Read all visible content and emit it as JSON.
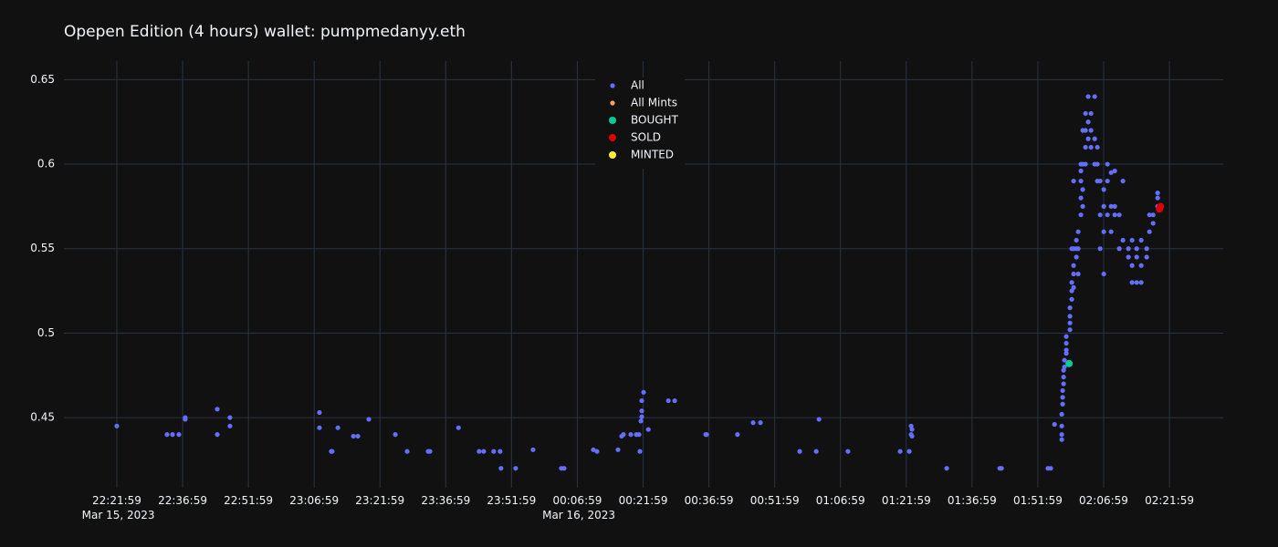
{
  "chart_data": {
    "type": "scatter",
    "title": "Opepen Edition (4 hours) wallet: pumpmedanyy.eth",
    "legend": "top-center",
    "grid": true,
    "xlim": [
      "2023-03-15 22:09:55",
      "2023-03-16 02:34:15"
    ],
    "ylim": [
      0.4085,
      0.661
    ],
    "yticks": [
      0.45,
      0.5,
      0.55,
      0.6,
      0.65
    ],
    "xticks": [
      {
        "value": "2023-03-15 22:21:59",
        "label": "22:21:59\nMar 15, 2023"
      },
      {
        "value": "2023-03-15 22:36:59",
        "label": "22:36:59"
      },
      {
        "value": "2023-03-15 22:51:59",
        "label": "22:51:59"
      },
      {
        "value": "2023-03-15 23:06:59",
        "label": "23:06:59"
      },
      {
        "value": "2023-03-15 23:21:59",
        "label": "23:21:59"
      },
      {
        "value": "2023-03-15 23:36:59",
        "label": "23:36:59"
      },
      {
        "value": "2023-03-15 23:51:59",
        "label": "23:51:59"
      },
      {
        "value": "2023-03-16 00:06:59",
        "label": "00:06:59\nMar 16, 2023"
      },
      {
        "value": "2023-03-16 00:21:59",
        "label": "00:21:59"
      },
      {
        "value": "2023-03-16 00:36:59",
        "label": "00:36:59"
      },
      {
        "value": "2023-03-16 00:51:59",
        "label": "00:51:59"
      },
      {
        "value": "2023-03-16 01:06:59",
        "label": "01:06:59"
      },
      {
        "value": "2023-03-16 01:21:59",
        "label": "01:21:59"
      },
      {
        "value": "2023-03-16 01:36:59",
        "label": "01:36:59"
      },
      {
        "value": "2023-03-16 01:51:59",
        "label": "01:51:59"
      },
      {
        "value": "2023-03-16 02:06:59",
        "label": "02:06:59"
      },
      {
        "value": "2023-03-16 02:21:59",
        "label": "02:21:59"
      }
    ],
    "series": [
      {
        "name": "All",
        "color": "#636efa",
        "x": [
          "2023-03-15 22:21:59",
          "2023-03-15 22:33:26",
          "2023-03-15 22:34:41",
          "2023-03-15 22:36:08",
          "2023-03-15 22:37:35",
          "2023-03-15 22:37:35",
          "2023-03-15 22:44:53",
          "2023-03-15 22:44:53",
          "2023-03-15 22:47:47",
          "2023-03-15 22:47:47",
          "2023-03-15 23:08:11",
          "2023-03-15 23:08:11",
          "2023-03-15 23:10:53",
          "2023-03-15 23:11:05",
          "2023-03-15 23:12:23",
          "2023-03-15 23:15:55",
          "2023-03-15 23:16:57",
          "2023-03-15 23:19:26",
          "2023-03-15 23:25:29",
          "2023-03-15 23:28:11",
          "2023-03-15 23:32:58",
          "2023-03-15 23:33:23",
          "2023-03-15 23:39:53",
          "2023-03-15 23:44:35",
          "2023-03-15 23:45:38",
          "2023-03-15 23:47:55",
          "2023-03-15 23:49:22",
          "2023-03-15 23:49:35",
          "2023-03-15 23:52:55",
          "2023-03-15 23:56:53",
          "2023-03-16 00:03:20",
          "2023-03-16 00:03:58",
          "2023-03-16 00:10:38",
          "2023-03-16 00:11:28",
          "2023-03-16 00:16:15",
          "2023-03-16 00:17:05",
          "2023-03-16 00:17:30",
          "2023-03-16 00:19:10",
          "2023-03-16 00:20:25",
          "2023-03-16 00:21:03",
          "2023-03-16 00:21:15",
          "2023-03-16 00:21:28",
          "2023-03-16 00:21:40",
          "2023-03-16 00:21:40",
          "2023-03-16 00:21:40",
          "2023-03-16 00:22:05",
          "2023-03-16 00:23:10",
          "2023-03-16 00:27:44",
          "2023-03-16 00:29:11",
          "2023-03-16 00:36:15",
          "2023-03-16 00:36:27",
          "2023-03-16 00:43:29",
          "2023-03-16 00:47:04",
          "2023-03-16 00:48:44",
          "2023-03-16 00:57:41",
          "2023-03-16 01:01:27",
          "2023-03-16 01:02:05",
          "2023-03-16 01:08:41",
          "2023-03-16 01:20:35",
          "2023-03-16 01:22:40",
          "2023-03-16 01:23:05",
          "2023-03-16 01:23:17",
          "2023-03-16 01:23:05",
          "2023-03-16 01:23:17",
          "2023-03-16 01:31:12",
          "2023-03-16 01:43:17",
          "2023-03-16 01:43:42",
          "2023-03-16 01:54:17",
          "2023-03-16 01:54:55",
          "2023-03-16 01:55:47",
          "2023-03-16 01:57:26",
          "2023-03-16 01:57:26",
          "2023-03-16 01:57:26",
          "2023-03-16 01:57:26",
          "2023-03-16 01:57:38",
          "2023-03-16 01:57:38",
          "2023-03-16 01:57:38",
          "2023-03-16 01:57:51",
          "2023-03-16 01:57:51",
          "2023-03-16 01:57:51",
          "2023-03-16 01:58:03",
          "2023-03-16 01:58:03",
          "2023-03-16 01:58:28",
          "2023-03-16 01:58:28",
          "2023-03-16 01:58:28",
          "2023-03-16 01:58:28",
          "2023-03-16 01:59:18",
          "2023-03-16 01:59:18",
          "2023-03-16 01:59:18",
          "2023-03-16 01:59:18",
          "2023-03-16 01:59:43",
          "2023-03-16 01:59:43",
          "2023-03-16 01:59:43",
          "2023-03-16 01:59:43",
          "2023-03-16 02:00:08",
          "2023-03-16 02:00:08",
          "2023-03-16 02:00:08",
          "2023-03-16 02:00:08",
          "2023-03-16 02:00:08",
          "2023-03-16 02:00:46",
          "2023-03-16 02:00:46",
          "2023-03-16 02:00:46",
          "2023-03-16 02:01:11",
          "2023-03-16 02:01:11",
          "2023-03-16 02:01:11",
          "2023-03-16 02:01:48",
          "2023-03-16 02:01:48",
          "2023-03-16 02:01:48",
          "2023-03-16 02:01:48",
          "2023-03-16 02:01:48",
          "2023-03-16 02:02:13",
          "2023-03-16 02:02:13",
          "2023-03-16 02:02:13",
          "2023-03-16 02:02:13",
          "2023-03-16 02:02:51",
          "2023-03-16 02:02:51",
          "2023-03-16 02:02:51",
          "2023-03-16 02:02:51",
          "2023-03-16 02:03:28",
          "2023-03-16 02:03:28",
          "2023-03-16 02:03:28",
          "2023-03-16 02:04:06",
          "2023-03-16 02:04:06",
          "2023-03-16 02:04:06",
          "2023-03-16 02:04:56",
          "2023-03-16 02:04:56",
          "2023-03-16 02:04:56",
          "2023-03-16 02:05:33",
          "2023-03-16 02:05:33",
          "2023-03-16 02:05:33",
          "2023-03-16 02:06:11",
          "2023-03-16 02:06:11",
          "2023-03-16 02:06:11",
          "2023-03-16 02:07:01",
          "2023-03-16 02:07:01",
          "2023-03-16 02:07:01",
          "2023-03-16 02:07:01",
          "2023-03-16 02:07:51",
          "2023-03-16 02:07:51",
          "2023-03-16 02:07:51",
          "2023-03-16 02:08:41",
          "2023-03-16 02:08:41",
          "2023-03-16 02:08:41",
          "2023-03-16 02:09:31",
          "2023-03-16 02:09:31",
          "2023-03-16 02:09:31",
          "2023-03-16 02:10:33",
          "2023-03-16 02:10:33",
          "2023-03-16 02:11:23",
          "2023-03-16 02:11:23",
          "2023-03-16 02:12:38",
          "2023-03-16 02:12:38",
          "2023-03-16 02:13:28",
          "2023-03-16 02:13:28",
          "2023-03-16 02:13:28",
          "2023-03-16 02:14:31",
          "2023-03-16 02:14:31",
          "2023-03-16 02:14:31",
          "2023-03-16 02:15:33",
          "2023-03-16 02:15:33",
          "2023-03-16 02:15:33",
          "2023-03-16 02:16:48",
          "2023-03-16 02:16:48",
          "2023-03-16 02:17:26",
          "2023-03-16 02:17:26",
          "2023-03-16 02:18:16",
          "2023-03-16 02:18:16",
          "2023-03-16 02:19:18",
          "2023-03-16 02:19:18",
          "2023-03-16 02:19:18"
        ],
        "values": [
          0.445,
          0.44,
          0.44,
          0.44,
          0.45,
          0.449,
          0.455,
          0.44,
          0.45,
          0.445,
          0.453,
          0.444,
          0.43,
          0.43,
          0.444,
          0.439,
          0.439,
          0.449,
          0.44,
          0.43,
          0.43,
          0.43,
          0.444,
          0.43,
          0.43,
          0.43,
          0.43,
          0.42,
          0.42,
          0.431,
          0.42,
          0.42,
          0.431,
          0.43,
          0.431,
          0.439,
          0.44,
          0.44,
          0.44,
          0.44,
          0.43,
          0.448,
          0.4505,
          0.454,
          0.46,
          0.465,
          0.443,
          0.46,
          0.46,
          0.44,
          0.44,
          0.44,
          0.447,
          0.447,
          0.43,
          0.43,
          0.449,
          0.43,
          0.43,
          0.43,
          0.445,
          0.443,
          0.44,
          0.439,
          0.42,
          0.42,
          0.42,
          0.42,
          0.42,
          0.446,
          0.437,
          0.44,
          0.445,
          0.452,
          0.458,
          0.462,
          0.466,
          0.47,
          0.474,
          0.478,
          0.48,
          0.484,
          0.488,
          0.49,
          0.494,
          0.498,
          0.502,
          0.506,
          0.51,
          0.515,
          0.52,
          0.525,
          0.53,
          0.55,
          0.527,
          0.535,
          0.54,
          0.55,
          0.59,
          0.545,
          0.55,
          0.555,
          0.55,
          0.56,
          0.535,
          0.57,
          0.58,
          0.59,
          0.596,
          0.6,
          0.575,
          0.585,
          0.6,
          0.62,
          0.6,
          0.61,
          0.62,
          0.63,
          0.615,
          0.625,
          0.64,
          0.61,
          0.62,
          0.63,
          0.64,
          0.615,
          0.6,
          0.61,
          0.6,
          0.59,
          0.59,
          0.57,
          0.55,
          0.535,
          0.56,
          0.575,
          0.585,
          0.57,
          0.59,
          0.6,
          0.575,
          0.595,
          0.56,
          0.57,
          0.596,
          0.575,
          0.57,
          0.55,
          0.555,
          0.59,
          0.55,
          0.545,
          0.54,
          0.53,
          0.555,
          0.53,
          0.545,
          0.55,
          0.53,
          0.54,
          0.555,
          0.55,
          0.545,
          0.56,
          0.57,
          0.565,
          0.57,
          0.575,
          0.58,
          0.583
        ]
      },
      {
        "name": "All Mints",
        "color": "#ffa15a",
        "x": [],
        "values": []
      },
      {
        "name": "BOUGHT",
        "color": "#00cc96",
        "x": [
          "2023-03-16 01:59:06"
        ],
        "values": [
          0.482
        ]
      },
      {
        "name": "SOLD",
        "color": "#dd0000",
        "x": [
          "2023-03-16 02:19:43",
          "2023-03-16 02:19:56"
        ],
        "values": [
          0.5735,
          0.575
        ]
      },
      {
        "name": "MINTED",
        "color": "#ffee33",
        "x": [],
        "values": []
      }
    ]
  }
}
